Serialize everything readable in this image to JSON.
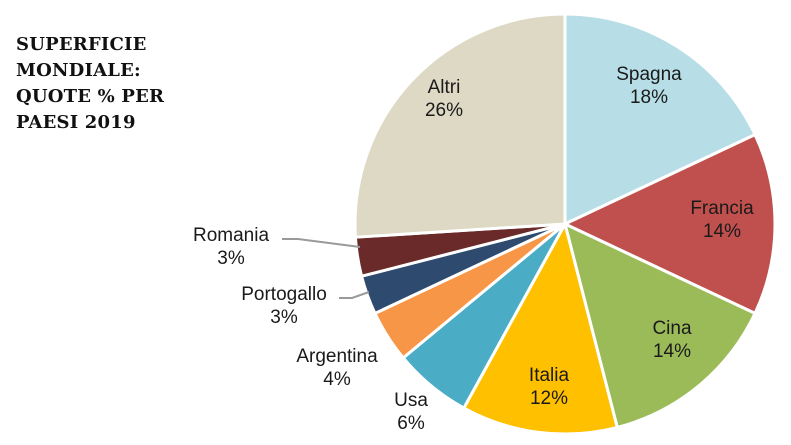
{
  "title_lines": [
    "SUPERFICIE",
    "MONDIALE:",
    "QUOTE % PER",
    "PAESI 2019"
  ],
  "chart_data": {
    "type": "pie",
    "title": "SUPERFICIE MONDIALE: QUOTE % PER PAESI 2019",
    "slices": [
      {
        "name": "Spagna",
        "value": 18,
        "label": "18%",
        "color": "#b7dde6"
      },
      {
        "name": "Francia",
        "value": 14,
        "label": "14%",
        "color": "#c0504d"
      },
      {
        "name": "Cina",
        "value": 14,
        "label": "14%",
        "color": "#9bbb59"
      },
      {
        "name": "Italia",
        "value": 12,
        "label": "12%",
        "color": "#ffc000"
      },
      {
        "name": "Usa",
        "value": 6,
        "label": "6%",
        "color": "#4bacc6"
      },
      {
        "name": "Argentina",
        "value": 4,
        "label": "4%",
        "color": "#f79646"
      },
      {
        "name": "Portogallo",
        "value": 3,
        "label": "3%",
        "color": "#2e4a6f"
      },
      {
        "name": "Romania",
        "value": 3,
        "label": "3%",
        "color": "#6b2a2a"
      },
      {
        "name": "Altri",
        "value": 26,
        "label": "26%",
        "color": "#ddd9c4"
      }
    ],
    "start": "12 o'clock",
    "direction": "clockwise",
    "legend": "none"
  }
}
